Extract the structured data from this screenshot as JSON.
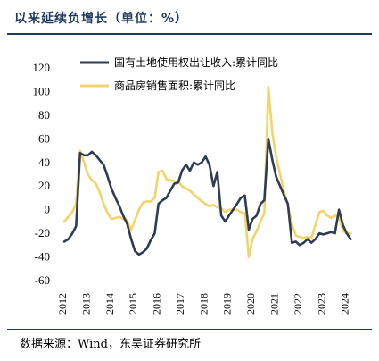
{
  "header": {
    "title": "以来延续负增长（单位：%）"
  },
  "footer": {
    "source": "数据来源：Wind，东吴证券研究所"
  },
  "colors": {
    "land": "#2f3d52",
    "housing": "#f5d36b",
    "title": "#1f3a5f"
  },
  "chart_data": {
    "type": "line",
    "ylim": [
      -60,
      120
    ],
    "yticks": [
      -60,
      -40,
      -20,
      0,
      20,
      40,
      60,
      80,
      100,
      120
    ],
    "xlim": [
      2012.0,
      2024.58
    ],
    "xticks": [
      "2012",
      "2013",
      "2014",
      "2015",
      "2016",
      "2017",
      "2018",
      "2019",
      "2020",
      "2021",
      "2022",
      "2023",
      "2024"
    ],
    "legend_position": "top-left",
    "series": [
      {
        "name": "国有土地使用权出让收入:累计同比",
        "color": "#2f3d52",
        "points": [
          [
            2012.08,
            -27
          ],
          [
            2012.25,
            -25
          ],
          [
            2012.42,
            -20
          ],
          [
            2012.58,
            -14
          ],
          [
            2012.75,
            48
          ],
          [
            2012.92,
            46
          ],
          [
            2013.08,
            46
          ],
          [
            2013.25,
            49
          ],
          [
            2013.42,
            46
          ],
          [
            2013.58,
            42
          ],
          [
            2013.75,
            38
          ],
          [
            2013.92,
            28
          ],
          [
            2014.08,
            18
          ],
          [
            2014.25,
            10
          ],
          [
            2014.42,
            3
          ],
          [
            2014.58,
            -5
          ],
          [
            2014.75,
            -12
          ],
          [
            2014.92,
            -25
          ],
          [
            2015.08,
            -35
          ],
          [
            2015.25,
            -38
          ],
          [
            2015.42,
            -36
          ],
          [
            2015.58,
            -33
          ],
          [
            2015.75,
            -26
          ],
          [
            2015.92,
            -20
          ],
          [
            2016.08,
            5
          ],
          [
            2016.25,
            8
          ],
          [
            2016.42,
            10
          ],
          [
            2016.58,
            16
          ],
          [
            2016.75,
            22
          ],
          [
            2016.92,
            23
          ],
          [
            2017.08,
            33
          ],
          [
            2017.25,
            38
          ],
          [
            2017.42,
            33
          ],
          [
            2017.58,
            40
          ],
          [
            2017.75,
            38
          ],
          [
            2017.92,
            40
          ],
          [
            2018.08,
            45
          ],
          [
            2018.25,
            38
          ],
          [
            2018.42,
            20
          ],
          [
            2018.58,
            32
          ],
          [
            2018.75,
            -5
          ],
          [
            2018.92,
            -10
          ],
          [
            2019.08,
            -5
          ],
          [
            2019.25,
            0
          ],
          [
            2019.42,
            5
          ],
          [
            2019.58,
            10
          ],
          [
            2019.75,
            12
          ],
          [
            2019.92,
            -17
          ],
          [
            2020.08,
            -8
          ],
          [
            2020.25,
            -5
          ],
          [
            2020.42,
            5
          ],
          [
            2020.58,
            8
          ],
          [
            2020.75,
            60
          ],
          [
            2020.92,
            42
          ],
          [
            2021.08,
            28
          ],
          [
            2021.25,
            20
          ],
          [
            2021.42,
            12
          ],
          [
            2021.58,
            5
          ],
          [
            2021.75,
            -28
          ],
          [
            2021.92,
            -27
          ],
          [
            2022.08,
            -30
          ],
          [
            2022.25,
            -28
          ],
          [
            2022.42,
            -25
          ],
          [
            2022.58,
            -28
          ],
          [
            2022.75,
            -25
          ],
          [
            2022.92,
            -20
          ],
          [
            2023.08,
            -21
          ],
          [
            2023.25,
            -20
          ],
          [
            2023.42,
            -19
          ],
          [
            2023.58,
            -20
          ],
          [
            2023.75,
            0
          ],
          [
            2023.92,
            -13
          ],
          [
            2024.08,
            -20
          ],
          [
            2024.25,
            -25
          ]
        ]
      },
      {
        "name": "商品房销售面积:累计同比",
        "color": "#f5d36b",
        "points": [
          [
            2012.08,
            -10
          ],
          [
            2012.25,
            -6
          ],
          [
            2012.42,
            -2
          ],
          [
            2012.58,
            5
          ],
          [
            2012.75,
            50
          ],
          [
            2012.92,
            40
          ],
          [
            2013.08,
            30
          ],
          [
            2013.25,
            25
          ],
          [
            2013.42,
            22
          ],
          [
            2013.58,
            15
          ],
          [
            2013.75,
            5
          ],
          [
            2013.92,
            -3
          ],
          [
            2014.08,
            -8
          ],
          [
            2014.25,
            -7
          ],
          [
            2014.42,
            -6
          ],
          [
            2014.58,
            -8
          ],
          [
            2014.75,
            -9
          ],
          [
            2014.92,
            -17
          ],
          [
            2015.08,
            -9
          ],
          [
            2015.25,
            0
          ],
          [
            2015.42,
            6
          ],
          [
            2015.58,
            7
          ],
          [
            2015.75,
            7
          ],
          [
            2015.92,
            10
          ],
          [
            2016.08,
            32
          ],
          [
            2016.25,
            33
          ],
          [
            2016.42,
            26
          ],
          [
            2016.58,
            25
          ],
          [
            2016.75,
            24
          ],
          [
            2016.92,
            24
          ],
          [
            2017.08,
            20
          ],
          [
            2017.25,
            18
          ],
          [
            2017.42,
            16
          ],
          [
            2017.58,
            13
          ],
          [
            2017.75,
            10
          ],
          [
            2017.92,
            7
          ],
          [
            2018.08,
            5
          ],
          [
            2018.25,
            3
          ],
          [
            2018.42,
            4
          ],
          [
            2018.58,
            2
          ],
          [
            2018.75,
            1
          ],
          [
            2018.92,
            -2
          ],
          [
            2019.08,
            0
          ],
          [
            2019.25,
            0
          ],
          [
            2019.42,
            0
          ],
          [
            2019.58,
            -2
          ],
          [
            2019.75,
            -3
          ],
          [
            2019.92,
            -40
          ],
          [
            2020.08,
            -25
          ],
          [
            2020.25,
            -18
          ],
          [
            2020.42,
            -10
          ],
          [
            2020.58,
            -3
          ],
          [
            2020.75,
            104
          ],
          [
            2020.92,
            65
          ],
          [
            2021.08,
            45
          ],
          [
            2021.25,
            30
          ],
          [
            2021.42,
            15
          ],
          [
            2021.58,
            4
          ],
          [
            2021.75,
            -12
          ],
          [
            2021.92,
            -22
          ],
          [
            2022.08,
            -23
          ],
          [
            2022.25,
            -24
          ],
          [
            2022.42,
            -23
          ],
          [
            2022.58,
            -24
          ],
          [
            2022.75,
            -13
          ],
          [
            2022.92,
            -2
          ],
          [
            2023.08,
            -1
          ],
          [
            2023.25,
            -5
          ],
          [
            2023.42,
            -7
          ],
          [
            2023.58,
            -5
          ],
          [
            2023.75,
            -6
          ],
          [
            2023.92,
            -18
          ],
          [
            2024.08,
            -20
          ],
          [
            2024.25,
            -20
          ]
        ]
      }
    ]
  }
}
